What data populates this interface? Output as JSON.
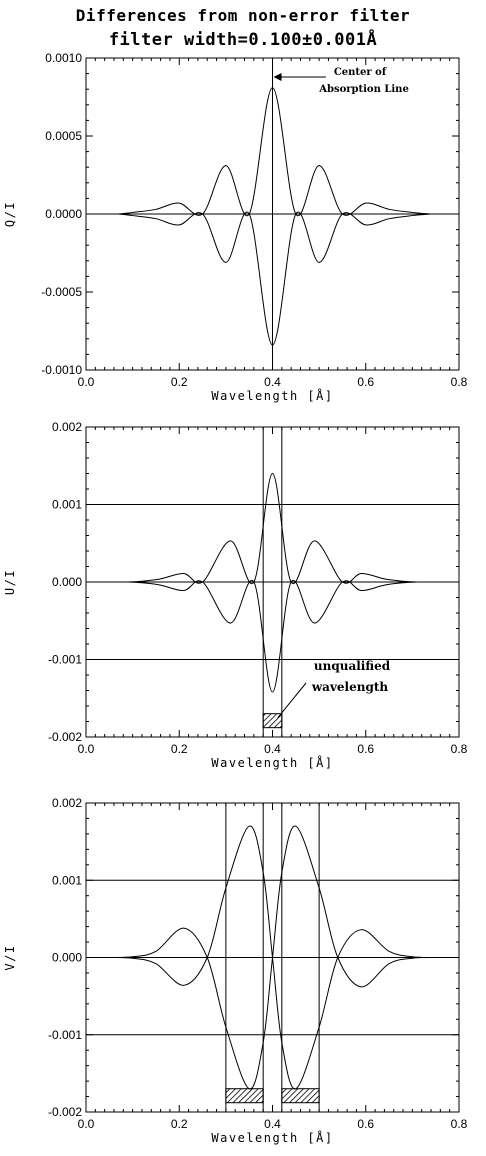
{
  "title_line1": "Differences from non-error filter",
  "title_line2": "filter width=0.100±0.001Å",
  "chart_data": [
    {
      "type": "line",
      "ylabel": "Q/I",
      "xlabel": "Wavelength [Å]",
      "xlim": [
        0.0,
        0.8
      ],
      "ylim": [
        -0.001,
        0.001
      ],
      "xticks": [
        "0.0",
        "0.2",
        "0.4",
        "0.6",
        "0.8"
      ],
      "yticks": [
        "0.0010",
        "0.0005",
        "0.0000",
        "-0.0005",
        "-0.0010"
      ],
      "ytick_values": [
        0.001,
        0.0005,
        0.0,
        -0.0005,
        -0.001
      ],
      "series": [
        {
          "x": [
            0.07,
            0.1,
            0.15,
            0.2,
            0.25,
            0.3,
            0.35,
            0.4,
            0.45,
            0.5,
            0.55,
            0.6,
            0.65,
            0.7,
            0.74
          ],
          "values": [
            0.0,
            1e-05,
            3e-05,
            7e-05,
            0.0,
            0.00031,
            0.0,
            0.00081,
            0.0,
            0.00031,
            0.0,
            7e-05,
            3e-05,
            1e-05,
            0.0
          ]
        },
        {
          "x": [
            0.07,
            0.1,
            0.15,
            0.2,
            0.25,
            0.3,
            0.35,
            0.4,
            0.45,
            0.5,
            0.55,
            0.6,
            0.65,
            0.7,
            0.74
          ],
          "values": [
            0.0,
            -1e-05,
            -3e-05,
            -7e-05,
            0.0,
            -0.00031,
            0.0,
            -0.00084,
            0.0,
            -0.00031,
            0.0,
            -7e-05,
            -3e-05,
            -1e-05,
            0.0
          ]
        }
      ],
      "vlines": [
        0.4
      ],
      "hlines": [
        0.0
      ],
      "annotation": {
        "lines": [
          "Center of",
          "Absorption Line"
        ],
        "arrow_to_x": 0.4
      }
    },
    {
      "type": "line",
      "ylabel": "U/I",
      "xlabel": "Wavelength [Å]",
      "xlim": [
        0.0,
        0.8
      ],
      "ylim": [
        -0.002,
        0.002
      ],
      "xticks": [
        "0.0",
        "0.2",
        "0.4",
        "0.6",
        "0.8"
      ],
      "yticks": [
        "0.002",
        "0.001",
        "0.000",
        "-0.001",
        "-0.002"
      ],
      "ytick_values": [
        0.002,
        0.001,
        0.0,
        -0.001,
        -0.002
      ],
      "series": [
        {
          "x": [
            0.09,
            0.12,
            0.16,
            0.21,
            0.25,
            0.31,
            0.36,
            0.4,
            0.44,
            0.49,
            0.55,
            0.59,
            0.64,
            0.68,
            0.71
          ],
          "values": [
            0.0,
            1e-05,
            4e-05,
            0.00011,
            0.0,
            0.00053,
            0.0,
            0.0014,
            0.0,
            0.00053,
            0.0,
            0.00011,
            4e-05,
            1e-05,
            0.0
          ]
        },
        {
          "x": [
            0.09,
            0.12,
            0.16,
            0.21,
            0.25,
            0.31,
            0.36,
            0.4,
            0.44,
            0.49,
            0.55,
            0.59,
            0.64,
            0.68,
            0.71
          ],
          "values": [
            0.0,
            -1e-05,
            -4e-05,
            -0.00011,
            0.0,
            -0.00053,
            0.0,
            -0.00142,
            0.0,
            -0.00053,
            0.0,
            -0.00011,
            -4e-05,
            -1e-05,
            0.0
          ]
        }
      ],
      "vlines": [
        0.38,
        0.42
      ],
      "hlines": [
        0.001,
        0.0,
        -0.001
      ],
      "hatched_regions": [
        [
          0.38,
          0.42
        ]
      ],
      "annotation": {
        "lines": [
          "unqualified",
          "wavelength"
        ]
      }
    },
    {
      "type": "line",
      "ylabel": "V/I",
      "xlabel": "Wavelength [Å]",
      "xlim": [
        0.0,
        0.8
      ],
      "ylim": [
        -0.002,
        0.002
      ],
      "xticks": [
        "0.0",
        "0.2",
        "0.4",
        "0.6",
        "0.8"
      ],
      "yticks": [
        "0.002",
        "0.001",
        "0.000",
        "-0.001",
        "-0.002"
      ],
      "ytick_values": [
        0.002,
        0.001,
        0.0,
        -0.001,
        -0.002
      ],
      "series": [
        {
          "x": [
            0.0,
            0.05,
            0.1,
            0.15,
            0.21,
            0.26,
            0.3,
            0.35,
            0.38,
            0.4,
            0.42,
            0.45,
            0.5,
            0.54,
            0.59,
            0.65,
            0.7,
            0.75,
            0.8
          ],
          "values": [
            0.0,
            0.0,
            -1e-05,
            -8e-05,
            -0.00036,
            0.0,
            0.0009,
            0.0017,
            0.0011,
            0.0,
            -0.0011,
            -0.0017,
            -0.0009,
            0.0,
            0.00036,
            8e-05,
            1e-05,
            0.0,
            0.0
          ]
        },
        {
          "x": [
            0.0,
            0.05,
            0.1,
            0.15,
            0.21,
            0.26,
            0.3,
            0.35,
            0.38,
            0.4,
            0.42,
            0.45,
            0.5,
            0.54,
            0.59,
            0.65,
            0.7,
            0.75,
            0.8
          ],
          "values": [
            0.0,
            0.0,
            1e-05,
            8e-05,
            0.00038,
            0.0,
            -0.0009,
            -0.0017,
            -0.0011,
            0.0,
            0.0011,
            0.0017,
            0.0009,
            0.0,
            -0.00038,
            -8e-05,
            -1e-05,
            0.0,
            0.0
          ]
        }
      ],
      "vlines": [
        0.3,
        0.38,
        0.42,
        0.5
      ],
      "hlines": [
        0.001,
        0.0,
        -0.001
      ],
      "hatched_regions": [
        [
          0.3,
          0.38
        ],
        [
          0.42,
          0.5
        ]
      ]
    }
  ]
}
